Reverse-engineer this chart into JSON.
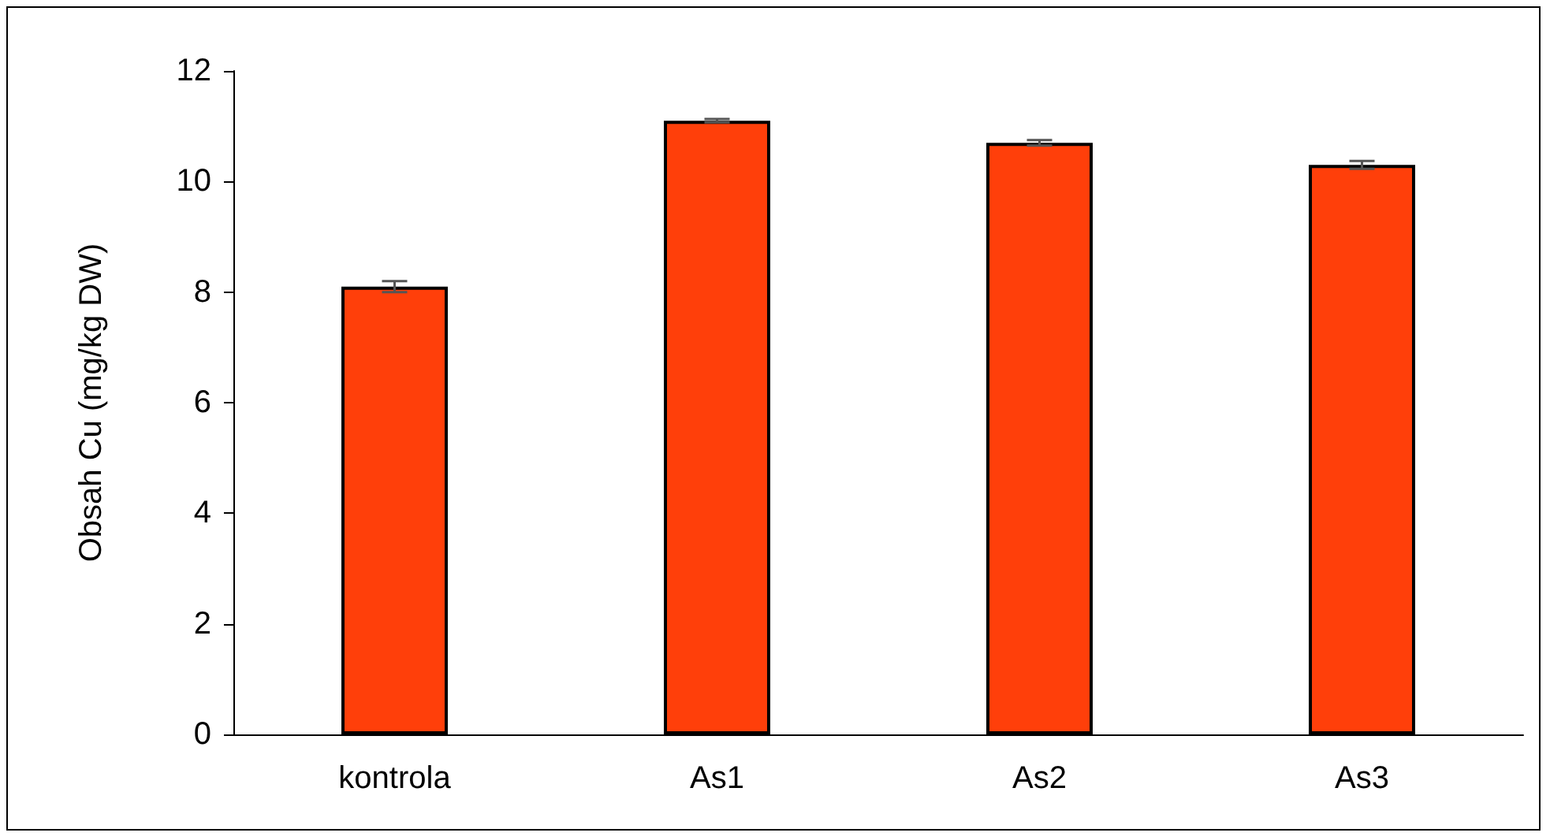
{
  "chart_data": {
    "type": "bar",
    "ylabel": "Obsah Cu (mg/kg DW)",
    "categories": [
      "kontrola",
      "As1",
      "As2",
      "As3"
    ],
    "values": [
      8.1,
      11.1,
      10.7,
      10.3
    ],
    "errors": [
      0.1,
      0.03,
      0.05,
      0.07
    ],
    "color": "#ff3f0a",
    "ylim": [
      0,
      12
    ],
    "yticks": [
      0,
      2,
      4,
      6,
      8,
      10,
      12
    ],
    "grid": false
  }
}
